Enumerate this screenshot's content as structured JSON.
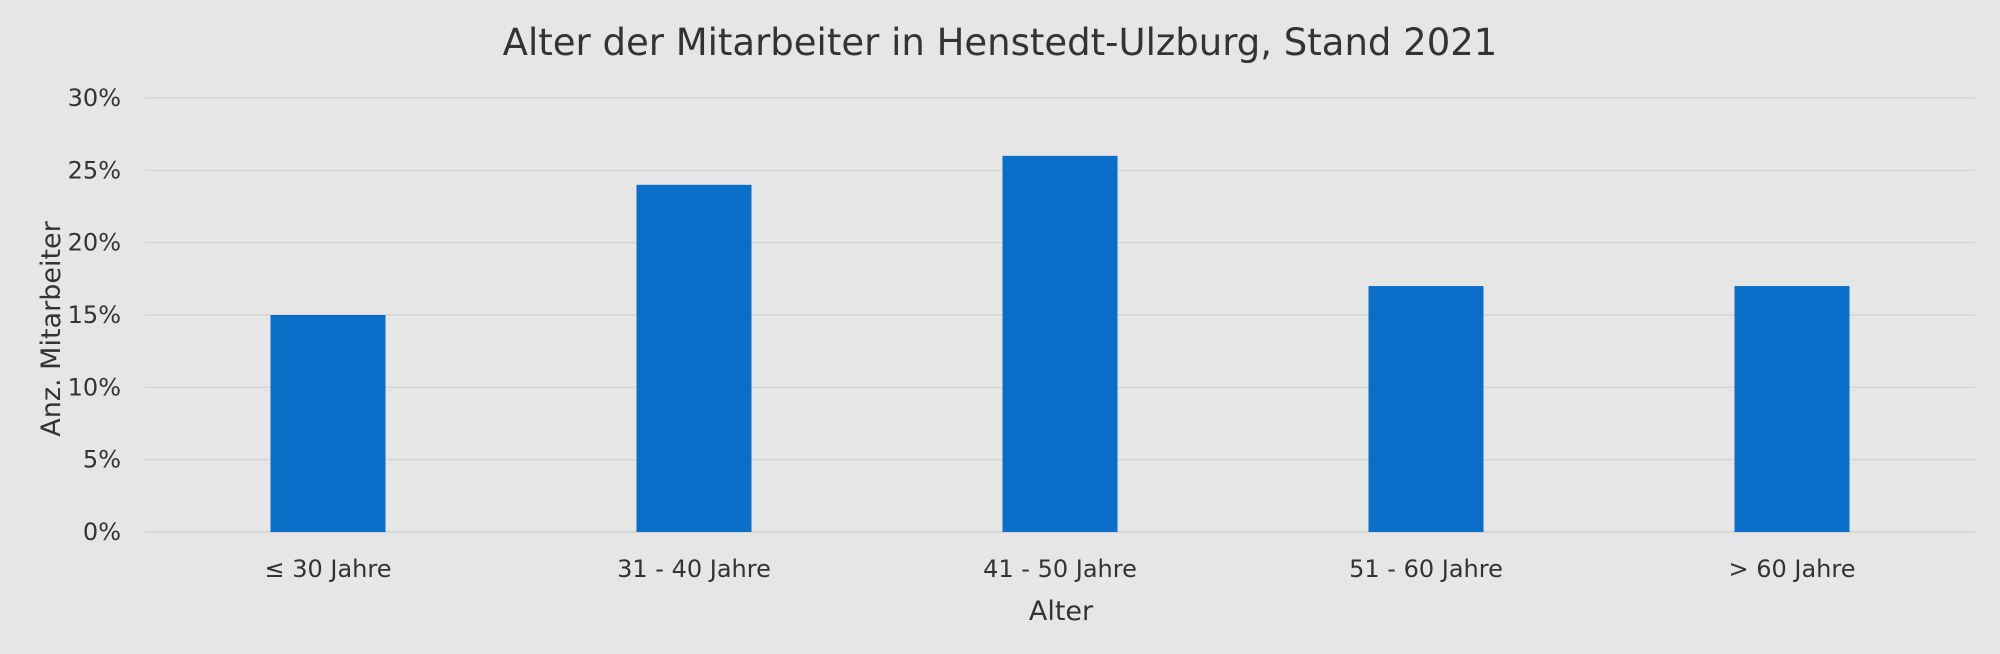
{
  "chart_data": {
    "type": "bar",
    "title": "Alter der Mitarbeiter in Henstedt-Ulzburg, Stand 2021",
    "xlabel": "Alter",
    "ylabel": "Anz. Mitarbeiter",
    "categories": [
      "≤ 30 Jahre",
      "31 - 40 Jahre",
      "41 - 50 Jahre",
      "51 - 60 Jahre",
      "> 60 Jahre"
    ],
    "values": [
      15,
      24,
      26,
      17,
      17
    ],
    "y_ticks": [
      0,
      5,
      10,
      15,
      20,
      25,
      30
    ],
    "y_tick_labels": [
      "0%",
      "5%",
      "10%",
      "15%",
      "20%",
      "25%",
      "30%"
    ],
    "ylim": [
      0,
      30
    ],
    "grid": true,
    "legend": "none",
    "colors": {
      "bar": "#0b6fc9",
      "background": "#e6e6e6",
      "grid": "#d4d4d4",
      "text": "#333333"
    }
  }
}
